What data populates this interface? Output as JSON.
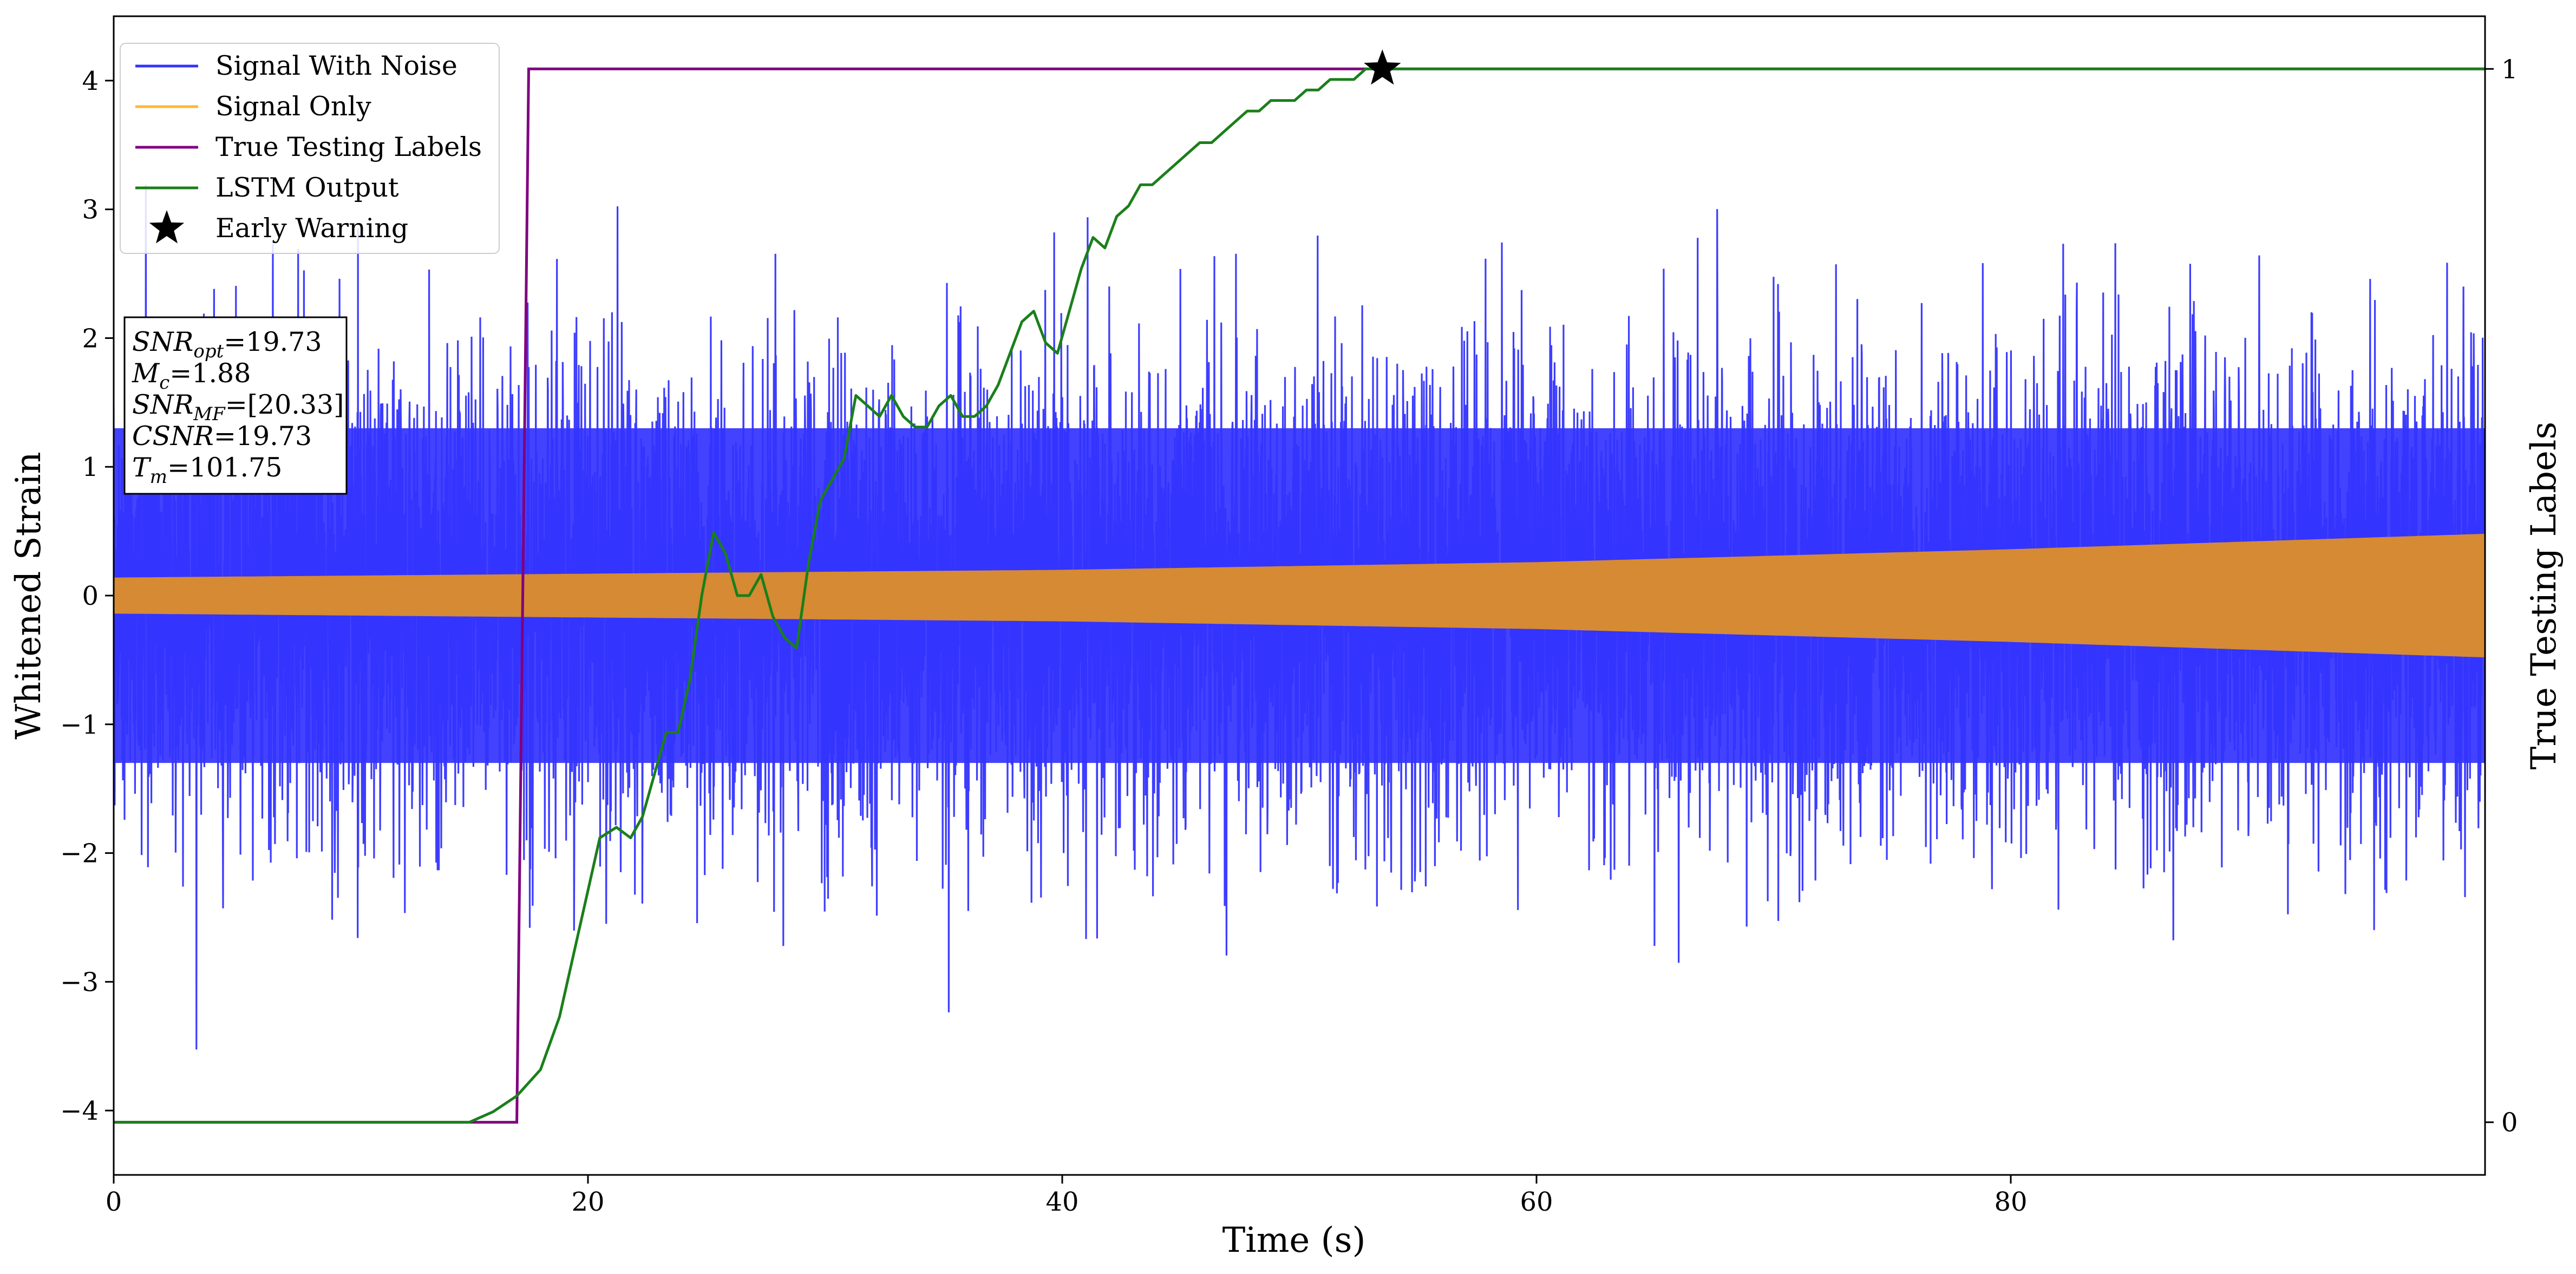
{
  "chart_data": {
    "type": "line",
    "xlabel": "Time (s)",
    "ylabel": "Whitened Strain",
    "y2label": "True Testing Labels",
    "xlim": [
      0,
      100
    ],
    "ylim": [
      -4.5,
      4.5
    ],
    "y2lim": [
      -0.05,
      1.05
    ],
    "x_ticks": [
      0,
      20,
      40,
      60,
      80
    ],
    "x_tick_labels": [
      "0",
      "20",
      "40",
      "60",
      "80"
    ],
    "y_ticks": [
      -4,
      -3,
      -2,
      -1,
      0,
      1,
      2,
      3,
      4
    ],
    "y_tick_labels": [
      "−4",
      "−3",
      "−2",
      "−1",
      "0",
      "1",
      "2",
      "3",
      "4"
    ],
    "y2_ticks": [
      0,
      1
    ],
    "y2_tick_labels": [
      "0",
      "1"
    ],
    "legend": {
      "placement": "upper-left",
      "entries": [
        {
          "label": "Signal With Noise",
          "color": "#3333ff",
          "marker": "line"
        },
        {
          "label": "Signal Only",
          "color": "#ffb733",
          "marker": "line"
        },
        {
          "label": "True Testing Labels",
          "color": "#800080",
          "marker": "line"
        },
        {
          "label": "LSTM Output",
          "color": "#1a7f1a",
          "marker": "line"
        },
        {
          "label": "Early Warning",
          "color": "#000000",
          "marker": "star"
        }
      ]
    },
    "info_box": [
      {
        "main": "SNR",
        "sub": "opt",
        "value": "=19.73"
      },
      {
        "main": "M",
        "sub": "c",
        "value": "=1.88"
      },
      {
        "main": "SNR",
        "sub": "MF",
        "value": "=[20.33]"
      },
      {
        "main": "CSNR",
        "sub": "",
        "value": "=19.73"
      },
      {
        "main": "T",
        "sub": "m",
        "value": "=101.75"
      }
    ],
    "series": [
      {
        "name": "Signal With Noise",
        "color": "#3333ff",
        "axis": "left",
        "noise": {
          "sigma": 0.9,
          "max_abs": 3.8,
          "core_amplitude": 1.3
        }
      },
      {
        "name": "Signal Only",
        "color": "#d68a33",
        "axis": "left",
        "envelope": {
          "x": [
            0,
            20,
            40,
            60,
            80,
            100
          ],
          "amplitude": [
            0.14,
            0.17,
            0.2,
            0.26,
            0.36,
            0.48
          ]
        }
      },
      {
        "name": "True Testing Labels",
        "color": "#800080",
        "axis": "right",
        "x": [
          0,
          17.0,
          17.5,
          100
        ],
        "y": [
          0,
          0,
          1,
          1
        ]
      },
      {
        "name": "LSTM Output",
        "color": "#1a7f1a",
        "axis": "right",
        "x": [
          0,
          15.0,
          16.0,
          17.0,
          18.0,
          18.8,
          19.3,
          20.0,
          20.5,
          21.2,
          21.8,
          22.3,
          22.8,
          23.3,
          23.8,
          24.3,
          24.8,
          25.3,
          25.8,
          26.3,
          26.8,
          27.3,
          27.8,
          28.3,
          28.8,
          29.3,
          29.8,
          30.3,
          30.8,
          31.3,
          31.8,
          32.3,
          32.8,
          33.3,
          33.8,
          34.3,
          34.8,
          35.3,
          35.8,
          36.3,
          36.8,
          37.3,
          37.8,
          38.3,
          38.8,
          39.3,
          39.8,
          40.3,
          40.8,
          41.3,
          41.8,
          42.3,
          42.8,
          43.3,
          43.8,
          44.3,
          44.8,
          45.3,
          45.8,
          46.3,
          46.8,
          47.3,
          47.8,
          48.3,
          48.8,
          49.3,
          49.8,
          50.3,
          50.8,
          51.3,
          51.8,
          52.3,
          52.8,
          53.3,
          53.8,
          54.3,
          55.0,
          56.0,
          58.0,
          60.0,
          70.0,
          80.0,
          90.0,
          100.0
        ],
        "y": [
          0,
          0,
          0.01,
          0.025,
          0.05,
          0.1,
          0.15,
          0.22,
          0.27,
          0.28,
          0.27,
          0.29,
          0.33,
          0.37,
          0.37,
          0.42,
          0.5,
          0.56,
          0.54,
          0.5,
          0.5,
          0.52,
          0.48,
          0.46,
          0.45,
          0.53,
          0.59,
          0.61,
          0.63,
          0.69,
          0.68,
          0.67,
          0.69,
          0.67,
          0.66,
          0.66,
          0.68,
          0.69,
          0.67,
          0.67,
          0.68,
          0.7,
          0.73,
          0.76,
          0.77,
          0.74,
          0.73,
          0.77,
          0.81,
          0.84,
          0.83,
          0.86,
          0.87,
          0.89,
          0.89,
          0.9,
          0.91,
          0.92,
          0.93,
          0.93,
          0.94,
          0.95,
          0.96,
          0.96,
          0.97,
          0.97,
          0.97,
          0.98,
          0.98,
          0.99,
          0.99,
          0.99,
          1.0,
          1.0,
          1.0,
          1.0,
          1.0,
          1.0,
          1.0,
          1.0,
          1.0,
          1.0,
          1.0,
          1.0
        ]
      }
    ],
    "early_warning": {
      "x": 53.5,
      "y": 1.0,
      "color": "#000000"
    }
  }
}
